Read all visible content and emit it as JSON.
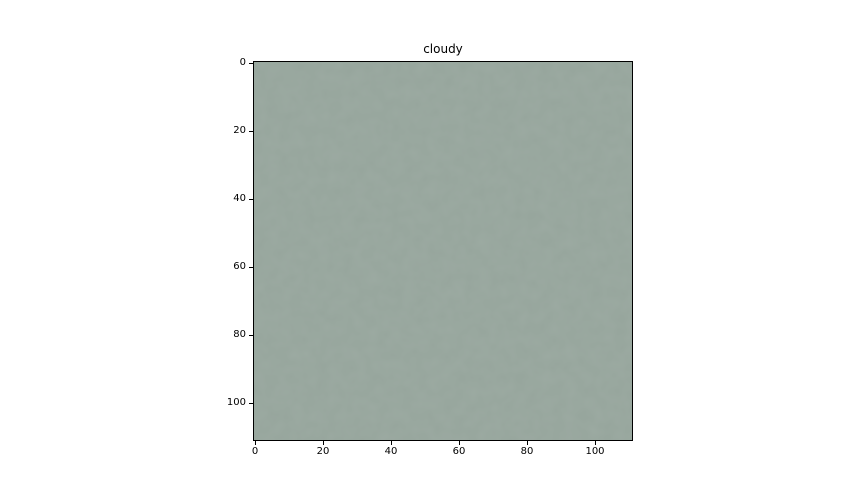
{
  "title": "cloudy",
  "image": {
    "description_color": "#96a59c",
    "colors": [
      "#94a39a",
      "#9aa89f",
      "#8f9f96",
      "#a0ada5",
      "#91a198"
    ]
  },
  "axes": {
    "x": {
      "ticks": [
        "0",
        "20",
        "40",
        "60",
        "80",
        "100"
      ]
    },
    "y": {
      "ticks": [
        "0",
        "20",
        "40",
        "60",
        "80",
        "100"
      ]
    }
  }
}
